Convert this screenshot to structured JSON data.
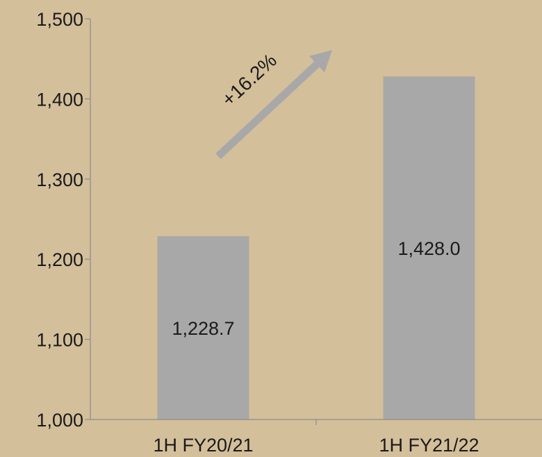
{
  "colors": {
    "background": "#d4bf9b",
    "bar": "#a8a8a8",
    "axis": "#8c8c8c",
    "arrow": "#a8a8a8",
    "text": "#1a1a1a"
  },
  "chart_data": {
    "type": "bar",
    "title": "",
    "xlabel": "",
    "ylabel": "",
    "categories": [
      "1H FY20/21",
      "1H FY21/22"
    ],
    "values": [
      1228.7,
      1428.0
    ],
    "data_labels": [
      "1,228.7",
      "1,428.0"
    ],
    "ylim": [
      1000,
      1500
    ],
    "yticks": [
      1000,
      1100,
      1200,
      1300,
      1400,
      1500
    ],
    "ytick_labels": [
      "1,000",
      "1,100",
      "1,200",
      "1,300",
      "1,400",
      "1,500"
    ],
    "grid": false,
    "legend": "none",
    "annotations": [
      {
        "text": "+16.2%",
        "type": "growth-arrow"
      }
    ]
  }
}
